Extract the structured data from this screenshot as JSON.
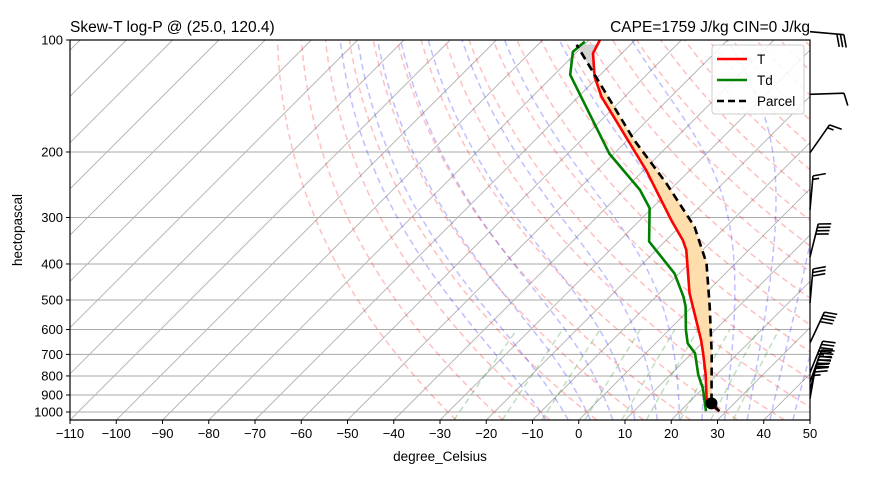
{
  "chart_data": {
    "type": "line",
    "subtype": "skew-t log-p",
    "title_left": "Skew-T log-P @ (25.0, 120.4)",
    "title_right": "CAPE=1759 J/kg  CIN=0 J/kg",
    "xlabel": "degree_Celsius",
    "ylabel": "hectopascal",
    "xlim": [
      -110,
      50
    ],
    "ylim": [
      1050,
      100
    ],
    "y_scale": "log",
    "x_ticks": [
      "−110",
      "−100",
      "−90",
      "−80",
      "−70",
      "−60",
      "−50",
      "−40",
      "−30",
      "−20",
      "−10",
      "0",
      "10",
      "20",
      "30",
      "40",
      "50"
    ],
    "x_tick_values": [
      -110,
      -100,
      -90,
      -80,
      -70,
      -60,
      -50,
      -40,
      -30,
      -20,
      -10,
      0,
      10,
      20,
      30,
      40,
      50
    ],
    "y_ticks": [
      "100",
      "200",
      "300",
      "400",
      "500",
      "600",
      "700",
      "800",
      "900",
      "1000"
    ],
    "y_tick_values": [
      100,
      200,
      300,
      400,
      500,
      600,
      700,
      800,
      900,
      1000
    ],
    "grid": true,
    "legend_position": "top-right",
    "series": [
      {
        "name": "T",
        "color": "#ff0000",
        "style": "solid",
        "points": [
          [
            995,
            28.5
          ],
          [
            938,
            23.7
          ],
          [
            795,
            17.7
          ],
          [
            694,
            12.4
          ],
          [
            641,
            9.2
          ],
          [
            479,
            -3.5
          ],
          [
            367,
            -13.5
          ],
          [
            345,
            -16.4
          ],
          [
            305,
            -23.2
          ],
          [
            224,
            -39.4
          ],
          [
            142,
            -65.0
          ],
          [
            125.5,
            -70.8
          ],
          [
            108.6,
            -76.2
          ],
          [
            100,
            -77.6
          ]
        ]
      },
      {
        "name": "Td",
        "color": "#008000",
        "style": "solid",
        "points": [
          [
            995,
            25.6
          ],
          [
            864,
            20.0
          ],
          [
            795,
            16.1
          ],
          [
            695,
            10.7
          ],
          [
            654,
            7.0
          ],
          [
            602,
            3.7
          ],
          [
            521,
            -1.4
          ],
          [
            490,
            -4.0
          ],
          [
            424,
            -11.0
          ],
          [
            348,
            -23.4
          ],
          [
            283,
            -30.5
          ],
          [
            253,
            -36.5
          ],
          [
            202,
            -51.0
          ],
          [
            124,
            -76.5
          ],
          [
            107.5,
            -80.9
          ],
          [
            101,
            -80.5
          ]
        ]
      },
      {
        "name": "Parcel",
        "color": "#000000",
        "style": "dashed",
        "points": [
          [
            995,
            28.5
          ],
          [
            948,
            25.1
          ],
          [
            695,
            14.3
          ],
          [
            521,
            3.8
          ],
          [
            398,
            -6.3
          ],
          [
            318,
            -16.7
          ],
          [
            243,
            -32.2
          ],
          [
            185,
            -48.8
          ],
          [
            118,
            -74.0
          ],
          [
            103,
            -81.6
          ]
        ]
      }
    ],
    "lcl": {
      "pressure": 948,
      "temperature": 25.1
    },
    "cape_fill_color": "#ffdead",
    "cin_fill_color": "#d3d3d3",
    "wind_barbs": [
      {
        "pressure": 95,
        "speed_kt": 30,
        "direction_deg": 95
      },
      {
        "pressure": 140,
        "speed_kt": 10,
        "direction_deg": 88
      },
      {
        "pressure": 201,
        "speed_kt": 15,
        "direction_deg": 35
      },
      {
        "pressure": 286,
        "speed_kt": 15,
        "direction_deg": 5
      },
      {
        "pressure": 383,
        "speed_kt": 40,
        "direction_deg": 14
      },
      {
        "pressure": 509,
        "speed_kt": 30,
        "direction_deg": 5
      },
      {
        "pressure": 652,
        "speed_kt": 40,
        "direction_deg": 25
      },
      {
        "pressure": 784,
        "speed_kt": 45,
        "direction_deg": 22
      },
      {
        "pressure": 830,
        "speed_kt": 45,
        "direction_deg": 20
      },
      {
        "pressure": 870,
        "speed_kt": 40,
        "direction_deg": 15
      },
      {
        "pressure": 920,
        "speed_kt": 35,
        "direction_deg": 10
      }
    ],
    "reference_lines": {
      "isotherms_color": "#b0b0b0",
      "dry_adiabats_color": "#ff0000",
      "moist_adiabats_color": "#0000ff",
      "mixing_ratio_color": "#008000"
    }
  }
}
